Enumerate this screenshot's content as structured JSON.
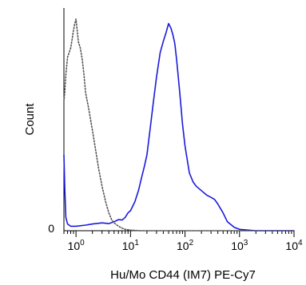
{
  "chart_data": {
    "type": "line",
    "title": "",
    "xlabel": "Hu/Mo CD44 (IM7) PE-Cy7",
    "ylabel": "Count",
    "x_scale": "log",
    "xlim": [
      0.6,
      10000
    ],
    "ylim": [
      0,
      100
    ],
    "y_tick_labels": [
      {
        "value": 0,
        "label": "0"
      }
    ],
    "x_ticks": [
      {
        "value": 1,
        "base": "10",
        "exp": "0"
      },
      {
        "value": 10,
        "base": "10",
        "exp": "1"
      },
      {
        "value": 100,
        "base": "10",
        "exp": "2"
      },
      {
        "value": 1000,
        "base": "10",
        "exp": "3"
      },
      {
        "value": 10000,
        "base": "10",
        "exp": "4"
      }
    ],
    "grid": false,
    "legend": "none",
    "series": [
      {
        "color": "#1a1adc",
        "style": "solid",
        "x": [
          0.6,
          0.62,
          0.65,
          0.7,
          0.8,
          1,
          1.5,
          2,
          3,
          4,
          5,
          6,
          7,
          8,
          9,
          10,
          12,
          14,
          16,
          18,
          20,
          23,
          26,
          30,
          35,
          40,
          45,
          50,
          55,
          60,
          65,
          70,
          80,
          90,
          100,
          120,
          140,
          160,
          200,
          250,
          300,
          350,
          400,
          500,
          600,
          800,
          1000,
          2000,
          10000
        ],
        "y": [
          34,
          20,
          6,
          3,
          2,
          2,
          2.5,
          3,
          3.5,
          3.2,
          4,
          5,
          4.8,
          6,
          8,
          9,
          13,
          18,
          24,
          29,
          34,
          46,
          57,
          69,
          80,
          85,
          89,
          93,
          91,
          88,
          84,
          77,
          62,
          48,
          38,
          26,
          22,
          20,
          18,
          16,
          15,
          14,
          12,
          8,
          4,
          1.5,
          0.6,
          0,
          0
        ]
      },
      {
        "color": "#555555",
        "style": "dotted",
        "x": [
          0.6,
          0.62,
          0.65,
          0.7,
          0.75,
          0.8,
          0.85,
          0.9,
          0.95,
          1,
          1.05,
          1.1,
          1.2,
          1.3,
          1.4,
          1.5,
          1.7,
          2,
          2.3,
          2.6,
          3,
          3.5,
          4,
          4.5,
          5,
          6,
          7,
          8,
          10,
          15,
          10000
        ],
        "y": [
          58,
          62,
          70,
          78,
          80,
          82,
          86,
          90,
          93,
          95,
          90,
          85,
          82,
          77,
          70,
          62,
          55,
          45,
          36,
          28,
          20,
          13,
          8,
          5,
          3.5,
          2,
          1.2,
          0.6,
          0.3,
          0,
          0
        ]
      }
    ]
  }
}
